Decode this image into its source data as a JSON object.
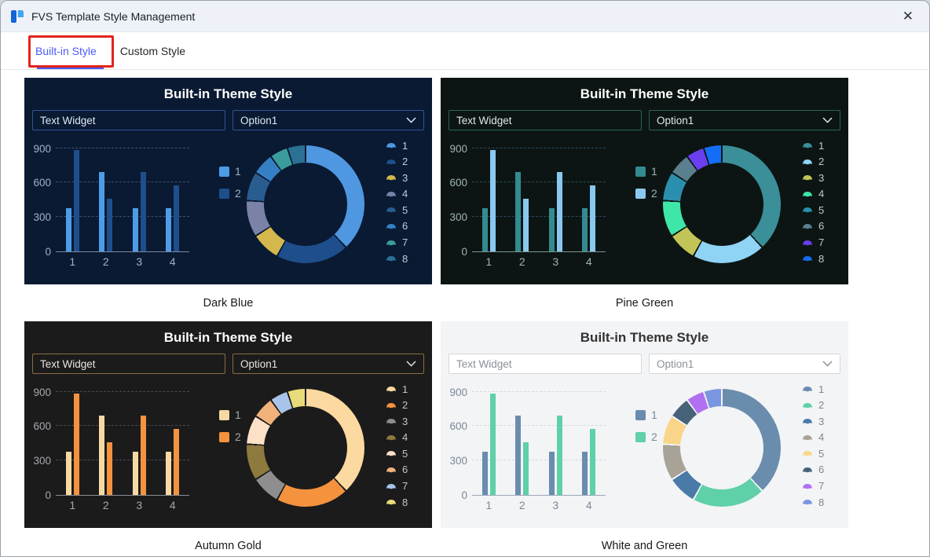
{
  "window": {
    "title": "FVS Template Style Management",
    "close": "✕"
  },
  "tabs": [
    {
      "label": "Built-in Style",
      "active": true
    },
    {
      "label": "Custom Style",
      "active": false
    }
  ],
  "accent": "#4a5cf7",
  "annotation_color": "#e2241d",
  "card_common": {
    "title": "Built-in Theme Style",
    "text_input_value": "Text Widget",
    "dropdown_value": "Option1"
  },
  "chart_data": [
    {
      "type": "bar",
      "title": "",
      "categories": [
        "1",
        "2",
        "3",
        "4"
      ],
      "series": [
        {
          "name": "1",
          "values": [
            380,
            690,
            375,
            380
          ]
        },
        {
          "name": "2",
          "values": [
            885,
            460,
            690,
            575
          ]
        }
      ],
      "y_ticks": [
        0,
        300,
        600,
        900
      ],
      "ylim": [
        0,
        945
      ],
      "grid": true,
      "legend_position": "right"
    },
    {
      "type": "pie",
      "donut": true,
      "labels": [
        "1",
        "2",
        "3",
        "4",
        "5",
        "6",
        "7",
        "8"
      ],
      "values_percent": [
        38,
        20,
        8,
        10,
        8,
        6,
        5,
        5
      ],
      "legend_position": "right"
    }
  ],
  "themes": [
    {
      "name": "Dark Blue",
      "colors": {
        "bg": "#0a1a33",
        "title": "#ffffff",
        "field_border": "#2e5690",
        "field_bg": "transparent",
        "field_text": "#dfe8f2",
        "axis_text": "#9fb0c7",
        "grid": "#3e5370",
        "axis_line": "#7c8aa0",
        "legend_text": "#c3cbd8",
        "bar1": "#4d9ce6",
        "bar2": "#1f4e8c",
        "donut": [
          "#4f97e0",
          "#1f4e8c",
          "#d4b84e",
          "#7a82a8",
          "#2a5d8f",
          "#3580c4",
          "#3b9d9b",
          "#2a7195"
        ]
      }
    },
    {
      "name": "Pine Green",
      "colors": {
        "bg": "#0c1513",
        "title": "#ffffff",
        "field_border": "#2a6361",
        "field_bg": "transparent",
        "field_text": "#dfeae8",
        "axis_text": "#9fb4b2",
        "grid": "#2e4a5e",
        "axis_line": "#7c9490",
        "legend_text": "#c0cbc9",
        "bar1": "#338b91",
        "bar2": "#8ac8f0",
        "donut": [
          "#3a8f99",
          "#8fd3f5",
          "#c3c457",
          "#3ee6a7",
          "#2a8fae",
          "#5a7f8e",
          "#6a3ff0",
          "#146ef5"
        ]
      }
    },
    {
      "name": "Autumn Gold",
      "colors": {
        "bg": "#1b1b1b",
        "title": "#ffffff",
        "field_border": "#8a6d42",
        "field_bg": "transparent",
        "field_text": "#eae6df",
        "axis_text": "#a5a8ad",
        "grid": "#464c58",
        "axis_line": "#8a8f98",
        "legend_text": "#c8c5bf",
        "bar1": "#f7d9a3",
        "bar2": "#f5923e",
        "donut": [
          "#fcd9a0",
          "#f5923e",
          "#8e8e8e",
          "#8e7a3e",
          "#fce0c8",
          "#f0b27a",
          "#a8c4e8",
          "#e8dc7a"
        ]
      }
    },
    {
      "name": "White and Green",
      "colors": {
        "bg": "#f3f4f6",
        "title": "#333333",
        "field_border": "#d5d7db",
        "field_bg": "#ffffff",
        "field_text": "#8a8f99",
        "axis_text": "#7a8899",
        "grid": "#d5dae2",
        "axis_line": "#9aa8b8",
        "legend_text": "#7a8694",
        "bar1": "#6a8cad",
        "bar2": "#5fd0a8",
        "donut": [
          "#6a8cad",
          "#5fd0a8",
          "#4a7aa8",
          "#a8a396",
          "#f8d588",
          "#46637a",
          "#b070f0",
          "#7a96e0"
        ]
      }
    }
  ]
}
